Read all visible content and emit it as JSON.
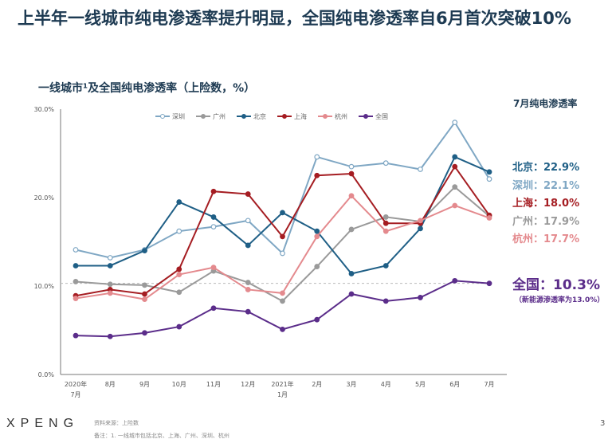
{
  "title": "上半年一线城市纯电渗透率提升明显，全国纯电渗透率自6月首次突破10%",
  "right_panel": {
    "title": "7月纯电渗透率",
    "values": [
      {
        "label": "北京：22.9%",
        "color": "#1f5f86"
      },
      {
        "label": "深圳：22.1%",
        "color": "#7fa7c4"
      },
      {
        "label": "上海：18.0%",
        "color": "#a51d22"
      },
      {
        "label": "广州：17.9%",
        "color": "#9a9a9a"
      },
      {
        "label": "杭州：17.7%",
        "color": "#e48a8e"
      }
    ],
    "national": "全国：10.3%",
    "national_note": "（新能源渗透率为13.0%）"
  },
  "footer": {
    "logo": "XPENG",
    "source": "资料来源：上险数",
    "note": "备注：1. 一线城市包括北京、上海、广州、深圳、杭州",
    "page": "3"
  },
  "chart_data": {
    "type": "line",
    "title": "一线城市¹及全国纯电渗透率（上险数，%）",
    "categories": [
      "2020年\n7月",
      "8月",
      "9月",
      "10月",
      "11月",
      "12月",
      "2021年\n1月",
      "2月",
      "3月",
      "4月",
      "5月",
      "6月",
      "7月"
    ],
    "ylim": [
      0,
      30
    ],
    "yticks": [
      "0.0%",
      "10.0%",
      "20.0%",
      "30.0%"
    ],
    "grid": false,
    "legend": "top",
    "reference_line": 10.3,
    "series": [
      {
        "name": "深圳",
        "color": "#7fa7c4",
        "marker": "open",
        "values": [
          14.1,
          13.2,
          14.1,
          16.2,
          16.7,
          17.4,
          13.7,
          24.6,
          23.5,
          23.9,
          23.2,
          28.5,
          22.1
        ]
      },
      {
        "name": "广州",
        "color": "#9a9a9a",
        "marker": "filled",
        "values": [
          10.5,
          10.2,
          10.1,
          9.3,
          11.7,
          10.4,
          8.3,
          12.2,
          16.4,
          17.8,
          17.3,
          21.2,
          17.9
        ]
      },
      {
        "name": "北京",
        "color": "#1f5f86",
        "marker": "filled",
        "values": [
          12.3,
          12.3,
          14.0,
          19.5,
          17.8,
          14.6,
          18.3,
          16.2,
          11.4,
          12.3,
          16.5,
          24.6,
          22.9
        ]
      },
      {
        "name": "上海",
        "color": "#a51d22",
        "marker": "filled",
        "values": [
          8.9,
          9.6,
          9.1,
          11.9,
          20.7,
          20.4,
          15.6,
          22.5,
          22.7,
          17.1,
          17.1,
          23.5,
          18.0
        ]
      },
      {
        "name": "杭州",
        "color": "#e48a8e",
        "marker": "filled",
        "values": [
          8.6,
          9.2,
          8.5,
          11.3,
          12.1,
          9.6,
          9.2,
          15.6,
          20.2,
          16.2,
          17.4,
          19.1,
          17.7
        ]
      },
      {
        "name": "全国",
        "color": "#5b2d8a",
        "marker": "filled",
        "values": [
          4.4,
          4.3,
          4.7,
          5.4,
          7.5,
          7.1,
          5.1,
          6.2,
          9.1,
          8.3,
          8.7,
          10.6,
          10.3
        ]
      }
    ]
  }
}
